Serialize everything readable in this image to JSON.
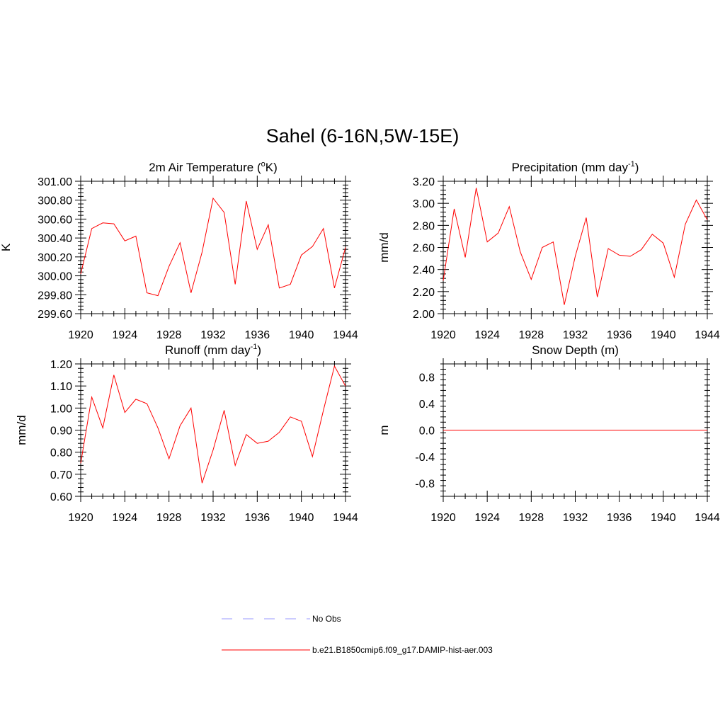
{
  "title": "Sahel (6-16N,5W-15E)",
  "legend": [
    {
      "label": "No Obs",
      "color": "#9999ff",
      "dash": true
    },
    {
      "label": "b.e21.B1850cmip6.f09_g17.DAMIP-hist-aer.003",
      "color": "#ff0000",
      "dash": false
    }
  ],
  "chart_data": [
    {
      "type": "line",
      "title": "2m Air Temperature (",
      "title_sup": "o",
      "title_after": "K)",
      "ylabel": "K",
      "xlim": [
        1920,
        1944
      ],
      "ylim": [
        299.6,
        301.0
      ],
      "xticks": [
        1920,
        1924,
        1928,
        1932,
        1936,
        1940,
        1944
      ],
      "yticks": [
        299.6,
        299.8,
        300.0,
        300.2,
        300.4,
        300.6,
        300.8,
        301.0
      ],
      "ytick_labels": [
        "299.60",
        "299.80",
        "300.00",
        "300.20",
        "300.40",
        "300.60",
        "300.80",
        "301.00"
      ],
      "series": [
        {
          "name": "b.e21.B1850cmip6.f09_g17.DAMIP-hist-aer.003",
          "color": "#ff0000",
          "x": [
            1920,
            1921,
            1922,
            1923,
            1924,
            1925,
            1926,
            1927,
            1928,
            1929,
            1930,
            1931,
            1932,
            1933,
            1934,
            1935,
            1936,
            1937,
            1938,
            1939,
            1940,
            1941,
            1942,
            1943,
            1944
          ],
          "y": [
            300.02,
            300.5,
            300.56,
            300.55,
            300.37,
            300.42,
            299.82,
            299.79,
            300.1,
            300.35,
            299.82,
            300.25,
            300.82,
            300.67,
            299.91,
            300.79,
            300.28,
            300.54,
            299.87,
            299.91,
            300.22,
            300.31,
            300.5,
            299.87,
            300.3
          ]
        }
      ]
    },
    {
      "type": "line",
      "title": "Precipitation (mm day",
      "title_sup": "-1",
      "title_after": ")",
      "ylabel": "mm/d",
      "xlim": [
        1920,
        1944
      ],
      "ylim": [
        2.0,
        3.2
      ],
      "xticks": [
        1920,
        1924,
        1928,
        1932,
        1936,
        1940,
        1944
      ],
      "yticks": [
        2.0,
        2.2,
        2.4,
        2.6,
        2.8,
        3.0,
        3.2
      ],
      "ytick_labels": [
        "2.00",
        "2.20",
        "2.40",
        "2.60",
        "2.80",
        "3.00",
        "3.20"
      ],
      "series": [
        {
          "name": "b.e21.B1850cmip6.f09_g17.DAMIP-hist-aer.003",
          "color": "#ff0000",
          "x": [
            1920,
            1921,
            1922,
            1923,
            1924,
            1925,
            1926,
            1927,
            1928,
            1929,
            1930,
            1931,
            1932,
            1933,
            1934,
            1935,
            1936,
            1937,
            1938,
            1939,
            1940,
            1941,
            1942,
            1943,
            1944
          ],
          "y": [
            2.3,
            2.95,
            2.51,
            3.14,
            2.65,
            2.73,
            2.97,
            2.56,
            2.31,
            2.6,
            2.65,
            2.08,
            2.52,
            2.87,
            2.15,
            2.59,
            2.53,
            2.52,
            2.58,
            2.72,
            2.64,
            2.33,
            2.81,
            3.03,
            2.85
          ]
        }
      ]
    },
    {
      "type": "line",
      "title": "Runoff (mm day",
      "title_sup": "-1",
      "title_after": ")",
      "ylabel": "mm/d",
      "xlim": [
        1920,
        1944
      ],
      "ylim": [
        0.6,
        1.2
      ],
      "xticks": [
        1920,
        1924,
        1928,
        1932,
        1936,
        1940,
        1944
      ],
      "yticks": [
        0.6,
        0.7,
        0.8,
        0.9,
        1.0,
        1.1,
        1.2
      ],
      "ytick_labels": [
        "0.60",
        "0.70",
        "0.80",
        "0.90",
        "1.00",
        "1.10",
        "1.20"
      ],
      "series": [
        {
          "name": "b.e21.B1850cmip6.f09_g17.DAMIP-hist-aer.003",
          "color": "#ff0000",
          "x": [
            1920,
            1921,
            1922,
            1923,
            1924,
            1925,
            1926,
            1927,
            1928,
            1929,
            1930,
            1931,
            1932,
            1933,
            1934,
            1935,
            1936,
            1937,
            1938,
            1939,
            1940,
            1941,
            1942,
            1943,
            1944
          ],
          "y": [
            0.75,
            1.05,
            0.91,
            1.15,
            0.98,
            1.04,
            1.02,
            0.91,
            0.77,
            0.92,
            1.0,
            0.66,
            0.81,
            0.99,
            0.74,
            0.88,
            0.84,
            0.85,
            0.89,
            0.96,
            0.94,
            0.78,
            0.99,
            1.19,
            1.1
          ]
        }
      ]
    },
    {
      "type": "line",
      "title": "Snow Depth (m)",
      "title_sup": "",
      "title_after": "",
      "ylabel": "m",
      "xlim": [
        1920,
        1944
      ],
      "ylim": [
        -1.0,
        1.0
      ],
      "xticks": [
        1920,
        1924,
        1928,
        1932,
        1936,
        1940,
        1944
      ],
      "yticks": [
        -0.8,
        -0.4,
        0.0,
        0.4,
        0.8
      ],
      "ytick_labels": [
        "-0.8",
        "-0.4",
        "0.0",
        "0.4",
        "0.8"
      ],
      "series": [
        {
          "name": "b.e21.B1850cmip6.f09_g17.DAMIP-hist-aer.003",
          "color": "#ff0000",
          "x": [
            1920,
            1921,
            1922,
            1923,
            1924,
            1925,
            1926,
            1927,
            1928,
            1929,
            1930,
            1931,
            1932,
            1933,
            1934,
            1935,
            1936,
            1937,
            1938,
            1939,
            1940,
            1941,
            1942,
            1943,
            1944
          ],
          "y": [
            0,
            0,
            0,
            0,
            0,
            0,
            0,
            0,
            0,
            0,
            0,
            0,
            0,
            0,
            0,
            0,
            0,
            0,
            0,
            0,
            0,
            0,
            0,
            0,
            0
          ]
        }
      ]
    }
  ]
}
